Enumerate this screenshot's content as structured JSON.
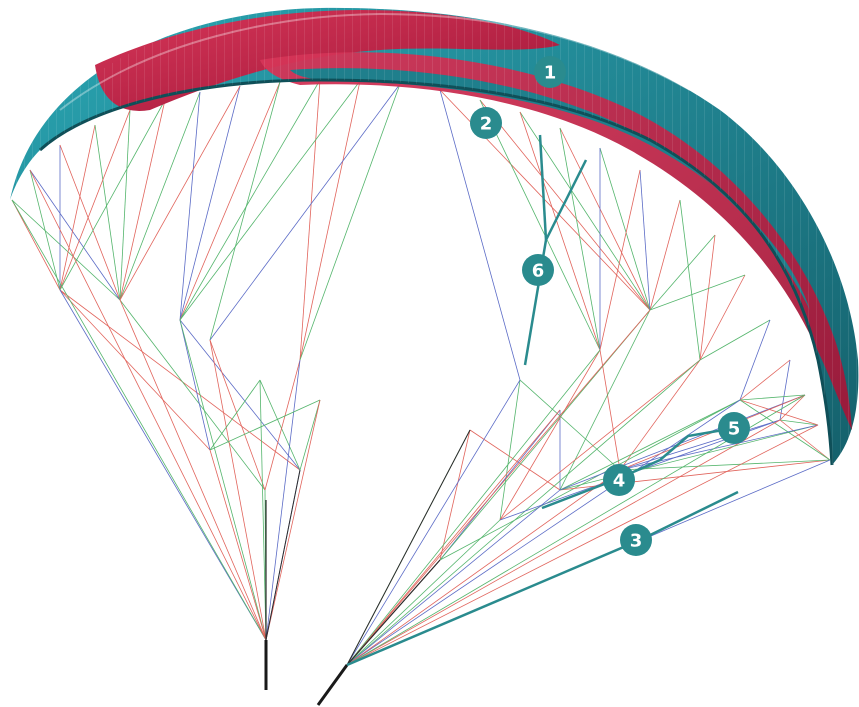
{
  "diagram": {
    "colors": {
      "teal": "#1f7f8c",
      "teal_light": "#2aa6b3",
      "teal_dark": "#14606b",
      "crimson": "#c8264b",
      "crimson_dark": "#9f1738",
      "callout": "#2a8b8e",
      "line_red": "#e1645c",
      "line_green": "#54b56c",
      "line_blue": "#5b6bc6",
      "line_dark": "#2b2b2b"
    },
    "callouts": [
      {
        "id": 1,
        "label": "1"
      },
      {
        "id": 2,
        "label": "2"
      },
      {
        "id": 3,
        "label": "3"
      },
      {
        "id": 4,
        "label": "4"
      },
      {
        "id": 5,
        "label": "5"
      },
      {
        "id": 6,
        "label": "6"
      }
    ]
  }
}
